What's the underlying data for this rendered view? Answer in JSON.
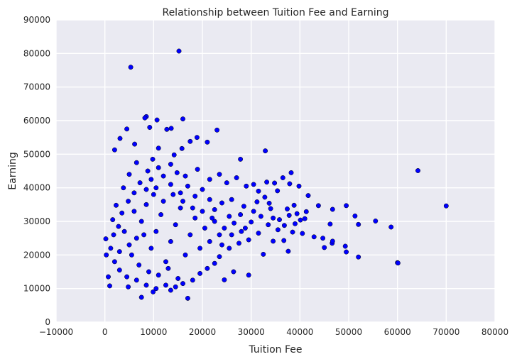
{
  "chart_data": {
    "type": "scatter",
    "title": "Relationship  between Tuition Fee and Earning",
    "xlabel": "Tuition Fee",
    "ylabel": "Earning",
    "xlim": [
      -10000,
      80000
    ],
    "ylim": [
      0,
      90000
    ],
    "xticks": [
      -10000,
      0,
      10000,
      20000,
      30000,
      40000,
      50000,
      60000,
      70000,
      80000
    ],
    "yticks": [
      0,
      10000,
      20000,
      30000,
      40000,
      50000,
      60000,
      70000,
      80000,
      90000
    ],
    "grid": true,
    "legend": "none",
    "series": [
      {
        "color": "#0000ff",
        "edgecolor": "#000000",
        "points": [
          [
            15200,
            80700
          ],
          [
            5300,
            75900
          ],
          [
            16000,
            60500
          ],
          [
            8500,
            61200
          ],
          [
            10700,
            60200
          ],
          [
            8200,
            60800
          ],
          [
            23000,
            57200
          ],
          [
            4500,
            57500
          ],
          [
            9200,
            58000
          ],
          [
            13600,
            57700
          ],
          [
            12700,
            57400
          ],
          [
            3100,
            54700
          ],
          [
            18900,
            55000
          ],
          [
            2000,
            51300
          ],
          [
            6100,
            53000
          ],
          [
            15800,
            51700
          ],
          [
            17500,
            53800
          ],
          [
            21000,
            53600
          ],
          [
            32900,
            51000
          ],
          [
            11000,
            51800
          ],
          [
            14200,
            49800
          ],
          [
            9800,
            48500
          ],
          [
            27800,
            48500
          ],
          [
            64200,
            45100
          ],
          [
            70000,
            34600
          ],
          [
            60000,
            17700
          ],
          [
            60100,
            17600
          ],
          [
            58700,
            28300
          ],
          [
            55500,
            30100
          ],
          [
            52000,
            29100
          ],
          [
            51300,
            31600
          ],
          [
            52000,
            19400
          ],
          [
            49500,
            34700
          ],
          [
            49300,
            22600
          ],
          [
            49500,
            20900
          ],
          [
            46700,
            33600
          ],
          [
            46200,
            29200
          ],
          [
            46600,
            23500
          ],
          [
            46700,
            24100
          ],
          [
            45000,
            22200
          ],
          [
            44700,
            25000
          ],
          [
            43800,
            34700
          ],
          [
            42900,
            25400
          ],
          [
            41700,
            37700
          ],
          [
            41300,
            32900
          ],
          [
            39800,
            40500
          ],
          [
            38200,
            44500
          ],
          [
            37900,
            41200
          ],
          [
            37400,
            33700
          ],
          [
            36500,
            43000
          ],
          [
            35400,
            39100
          ],
          [
            34800,
            41400
          ],
          [
            33700,
            35400
          ],
          [
            33200,
            41700
          ],
          [
            38800,
            34800
          ],
          [
            39400,
            32300
          ],
          [
            40100,
            30400
          ],
          [
            38500,
            26800
          ],
          [
            40500,
            26400
          ],
          [
            37600,
            21100
          ],
          [
            36700,
            24300
          ],
          [
            34500,
            24100
          ],
          [
            32500,
            20200
          ],
          [
            29500,
            14000
          ],
          [
            26400,
            15000
          ],
          [
            24500,
            12600
          ],
          [
            17000,
            7100
          ],
          [
            13500,
            9500
          ],
          [
            9900,
            9000
          ],
          [
            7500,
            7400
          ],
          [
            4800,
            10500
          ],
          [
            1000,
            10800
          ],
          [
            700,
            13500
          ],
          [
            300,
            20000
          ],
          [
            200,
            24800
          ],
          [
            1600,
            30500
          ],
          [
            2300,
            34800
          ],
          [
            3800,
            40000
          ],
          [
            5000,
            44000
          ],
          [
            6500,
            47500
          ],
          [
            8800,
            45000
          ],
          [
            11000,
            46000
          ],
          [
            13500,
            47000
          ],
          [
            16500,
            43500
          ],
          [
            19000,
            45500
          ],
          [
            21500,
            42500
          ],
          [
            23500,
            44000
          ],
          [
            25000,
            41500
          ],
          [
            27000,
            43000
          ],
          [
            29000,
            40500
          ],
          [
            30500,
            41000
          ],
          [
            31500,
            39000
          ],
          [
            26000,
            36500
          ],
          [
            28500,
            34500
          ],
          [
            30500,
            33000
          ],
          [
            32000,
            31500
          ],
          [
            33500,
            29000
          ],
          [
            35500,
            27500
          ],
          [
            34500,
            31000
          ],
          [
            31500,
            26500
          ],
          [
            29500,
            24500
          ],
          [
            27500,
            23500
          ],
          [
            25500,
            22000
          ],
          [
            23500,
            19500
          ],
          [
            22500,
            17500
          ],
          [
            21000,
            16000
          ],
          [
            19500,
            14500
          ],
          [
            18000,
            12500
          ],
          [
            16000,
            11500
          ],
          [
            14500,
            10500
          ],
          [
            12500,
            11000
          ],
          [
            10500,
            10000
          ],
          [
            8500,
            11000
          ],
          [
            6500,
            12500
          ],
          [
            4500,
            13500
          ],
          [
            3000,
            15500
          ],
          [
            2000,
            18000
          ],
          [
            1200,
            22000
          ],
          [
            1800,
            26000
          ],
          [
            2800,
            28500
          ],
          [
            3500,
            32500
          ],
          [
            4800,
            36000
          ],
          [
            6000,
            38500
          ],
          [
            7200,
            41500
          ],
          [
            8500,
            39500
          ],
          [
            9500,
            42500
          ],
          [
            10500,
            40000
          ],
          [
            12000,
            43500
          ],
          [
            13500,
            41000
          ],
          [
            14800,
            44500
          ],
          [
            15500,
            38500
          ],
          [
            17000,
            40500
          ],
          [
            18500,
            37500
          ],
          [
            20000,
            39500
          ],
          [
            21500,
            36500
          ],
          [
            22500,
            33500
          ],
          [
            24000,
            35500
          ],
          [
            25500,
            31500
          ],
          [
            26500,
            29500
          ],
          [
            27800,
            32000
          ],
          [
            28800,
            28000
          ],
          [
            30000,
            29800
          ],
          [
            31200,
            35800
          ],
          [
            32800,
            37200
          ],
          [
            34000,
            33800
          ],
          [
            35800,
            30500
          ],
          [
            36800,
            28800
          ],
          [
            37800,
            31800
          ],
          [
            39000,
            29300
          ],
          [
            41000,
            30800
          ],
          [
            5500,
            20000
          ],
          [
            6500,
            25000
          ],
          [
            7500,
            30000
          ],
          [
            8500,
            35000
          ],
          [
            9500,
            22000
          ],
          [
            10500,
            27000
          ],
          [
            11500,
            32000
          ],
          [
            12500,
            18000
          ],
          [
            13500,
            24000
          ],
          [
            14500,
            29000
          ],
          [
            15500,
            34000
          ],
          [
            16500,
            20000
          ],
          [
            17500,
            26000
          ],
          [
            18500,
            31000
          ],
          [
            19500,
            22000
          ],
          [
            20500,
            28000
          ],
          [
            21500,
            24000
          ],
          [
            22500,
            30000
          ],
          [
            23500,
            26000
          ],
          [
            24500,
            28000
          ],
          [
            9000,
            15000
          ],
          [
            11000,
            14000
          ],
          [
            13000,
            16000
          ],
          [
            15000,
            13000
          ],
          [
            7000,
            17000
          ],
          [
            5000,
            23000
          ],
          [
            3000,
            21000
          ],
          [
            4000,
            27000
          ],
          [
            6000,
            33000
          ],
          [
            8000,
            26000
          ],
          [
            10000,
            38000
          ],
          [
            12000,
            36000
          ],
          [
            14000,
            38000
          ],
          [
            16000,
            36000
          ],
          [
            18000,
            34000
          ],
          [
            20000,
            33000
          ],
          [
            22000,
            31000
          ],
          [
            24000,
            23000
          ],
          [
            26000,
            26000
          ],
          [
            28000,
            27000
          ]
        ]
      }
    ]
  }
}
